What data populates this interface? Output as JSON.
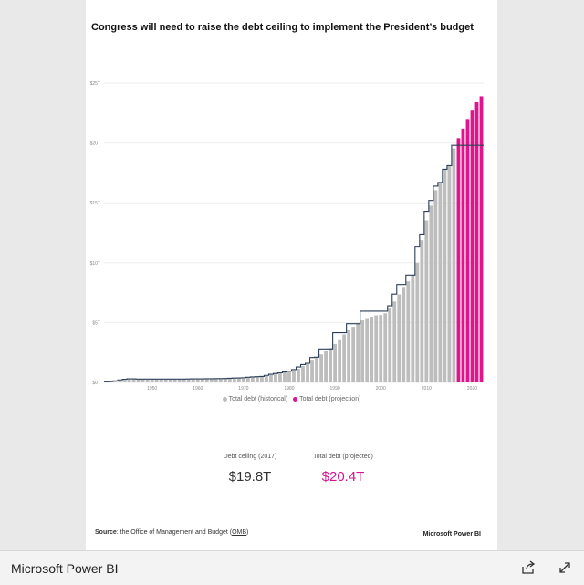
{
  "report": {
    "title": "Congress will need to raise the debt ceiling to implement the President’s budget",
    "source_label": "Source",
    "source_text": ": the Office of Management and Budget (",
    "source_link": "OMB",
    "source_close": ")",
    "brand_small": "Microsoft Power BI"
  },
  "kpis": [
    {
      "label": "Debt ceiling (2017)",
      "value": "$19.8T",
      "color": "#333333"
    },
    {
      "label": "Total debt (projected)",
      "value": "$20.4T",
      "color": "#d4148c"
    }
  ],
  "footer": {
    "brand": "Microsoft Power BI",
    "share_icon": "share-icon",
    "expand_icon": "expand-icon"
  },
  "chart_data": {
    "type": "bar",
    "title": "",
    "xlabel": "",
    "ylabel": "",
    "ylim": [
      0,
      25
    ],
    "yticks": [
      0,
      5,
      10,
      15,
      20,
      25
    ],
    "ytick_labels": [
      "$0T",
      "$5T",
      "$10T",
      "$15T",
      "$20T",
      "$25T"
    ],
    "xticks": [
      1950,
      1960,
      1970,
      1980,
      1990,
      2000,
      2010,
      2020
    ],
    "xtick_labels": [
      "1950",
      "1960",
      "1970",
      "1980",
      "1990",
      "2000",
      "2010",
      "2020"
    ],
    "x_start": 1940,
    "x_end": 2022,
    "grid": true,
    "legend_position": "bottom-center",
    "colors": {
      "historical": "#bdbdbd",
      "projection": "#e0148c",
      "ceiling": "#2c3e58"
    },
    "series": [
      {
        "name": "Total debt (historical)",
        "years": [
          1940,
          1941,
          1942,
          1943,
          1944,
          1945,
          1946,
          1947,
          1948,
          1949,
          1950,
          1951,
          1952,
          1953,
          1954,
          1955,
          1956,
          1957,
          1958,
          1959,
          1960,
          1961,
          1962,
          1963,
          1964,
          1965,
          1966,
          1967,
          1968,
          1969,
          1970,
          1971,
          1972,
          1973,
          1974,
          1975,
          1976,
          1977,
          1978,
          1979,
          1980,
          1981,
          1982,
          1983,
          1984,
          1985,
          1986,
          1987,
          1988,
          1989,
          1990,
          1991,
          1992,
          1993,
          1994,
          1995,
          1996,
          1997,
          1998,
          1999,
          2000,
          2001,
          2002,
          2003,
          2004,
          2005,
          2006,
          2007,
          2008,
          2009,
          2010,
          2011,
          2012,
          2013,
          2014,
          2015,
          2016
        ],
        "values": [
          0.05,
          0.06,
          0.08,
          0.14,
          0.2,
          0.26,
          0.27,
          0.26,
          0.25,
          0.25,
          0.26,
          0.26,
          0.26,
          0.27,
          0.27,
          0.27,
          0.27,
          0.27,
          0.28,
          0.29,
          0.29,
          0.29,
          0.3,
          0.31,
          0.32,
          0.32,
          0.33,
          0.34,
          0.37,
          0.37,
          0.38,
          0.41,
          0.44,
          0.47,
          0.48,
          0.54,
          0.63,
          0.71,
          0.78,
          0.83,
          0.91,
          1.0,
          1.14,
          1.37,
          1.56,
          1.82,
          2.12,
          2.35,
          2.6,
          2.87,
          3.21,
          3.6,
          4.0,
          4.35,
          4.64,
          4.92,
          5.18,
          5.37,
          5.48,
          5.6,
          5.63,
          5.77,
          6.2,
          6.76,
          7.35,
          7.91,
          8.45,
          8.95,
          9.99,
          11.88,
          13.53,
          14.76,
          16.05,
          16.72,
          17.79,
          18.12,
          19.54
        ]
      },
      {
        "name": "Total debt (projection)",
        "years": [
          2017,
          2018,
          2019,
          2020,
          2021,
          2022
        ],
        "values": [
          20.4,
          21.2,
          22.0,
          22.7,
          23.4,
          23.9
        ]
      },
      {
        "name": "Debt ceiling",
        "years": [
          1940,
          1941,
          1942,
          1943,
          1944,
          1945,
          1946,
          1947,
          1948,
          1949,
          1950,
          1951,
          1952,
          1953,
          1954,
          1955,
          1956,
          1957,
          1958,
          1959,
          1960,
          1961,
          1962,
          1963,
          1964,
          1965,
          1966,
          1967,
          1968,
          1969,
          1970,
          1971,
          1972,
          1973,
          1974,
          1975,
          1976,
          1977,
          1978,
          1979,
          1980,
          1981,
          1982,
          1983,
          1984,
          1985,
          1986,
          1987,
          1988,
          1989,
          1990,
          1991,
          1992,
          1993,
          1994,
          1995,
          1996,
          1997,
          1998,
          1999,
          2000,
          2001,
          2002,
          2003,
          2004,
          2005,
          2006,
          2007,
          2008,
          2009,
          2010,
          2011,
          2012,
          2013,
          2014,
          2015,
          2016,
          2017,
          2018,
          2019,
          2020,
          2021,
          2022
        ],
        "values": [
          0.05,
          0.07,
          0.13,
          0.21,
          0.26,
          0.3,
          0.3,
          0.28,
          0.28,
          0.28,
          0.28,
          0.28,
          0.28,
          0.28,
          0.28,
          0.28,
          0.28,
          0.28,
          0.29,
          0.3,
          0.3,
          0.3,
          0.31,
          0.31,
          0.32,
          0.32,
          0.33,
          0.35,
          0.37,
          0.38,
          0.39,
          0.43,
          0.46,
          0.48,
          0.5,
          0.59,
          0.68,
          0.75,
          0.8,
          0.87,
          0.94,
          1.07,
          1.29,
          1.49,
          1.6,
          2.08,
          2.11,
          2.8,
          2.8,
          2.8,
          4.15,
          4.15,
          4.15,
          4.9,
          4.9,
          4.9,
          5.95,
          5.95,
          5.95,
          5.95,
          5.95,
          5.95,
          6.4,
          7.38,
          8.18,
          8.18,
          8.97,
          8.97,
          11.31,
          12.39,
          14.29,
          15.19,
          16.39,
          16.7,
          17.8,
          18.11,
          19.8,
          19.8,
          19.8,
          19.8,
          19.8,
          19.8,
          19.8
        ]
      }
    ]
  }
}
